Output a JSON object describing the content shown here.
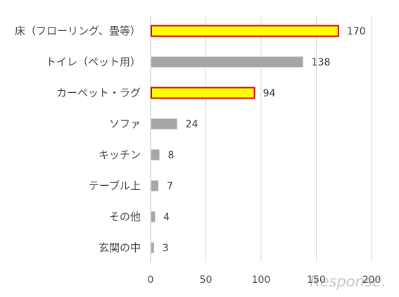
{
  "chart_data": {
    "type": "bar",
    "orientation": "horizontal",
    "categories": [
      "床（フローリング、畳等）",
      "トイレ（ペット用）",
      "カーペット・ラグ",
      "ソファ",
      "キッチン",
      "テーブル上",
      "その他",
      "玄関の中"
    ],
    "values": [
      170,
      138,
      94,
      24,
      8,
      7,
      4,
      3
    ],
    "highlighted": [
      true,
      false,
      true,
      false,
      false,
      false,
      false,
      false
    ],
    "xlim": [
      0,
      200
    ],
    "xticks": [
      0,
      50,
      100,
      150,
      200
    ],
    "grid": true,
    "legend": "none",
    "colors": {
      "bar": "#a6a6a6",
      "highlight_fill": "#ffff00",
      "highlight_border": "#e00000",
      "grid": "#d9d9d9"
    }
  },
  "watermark": "Response."
}
